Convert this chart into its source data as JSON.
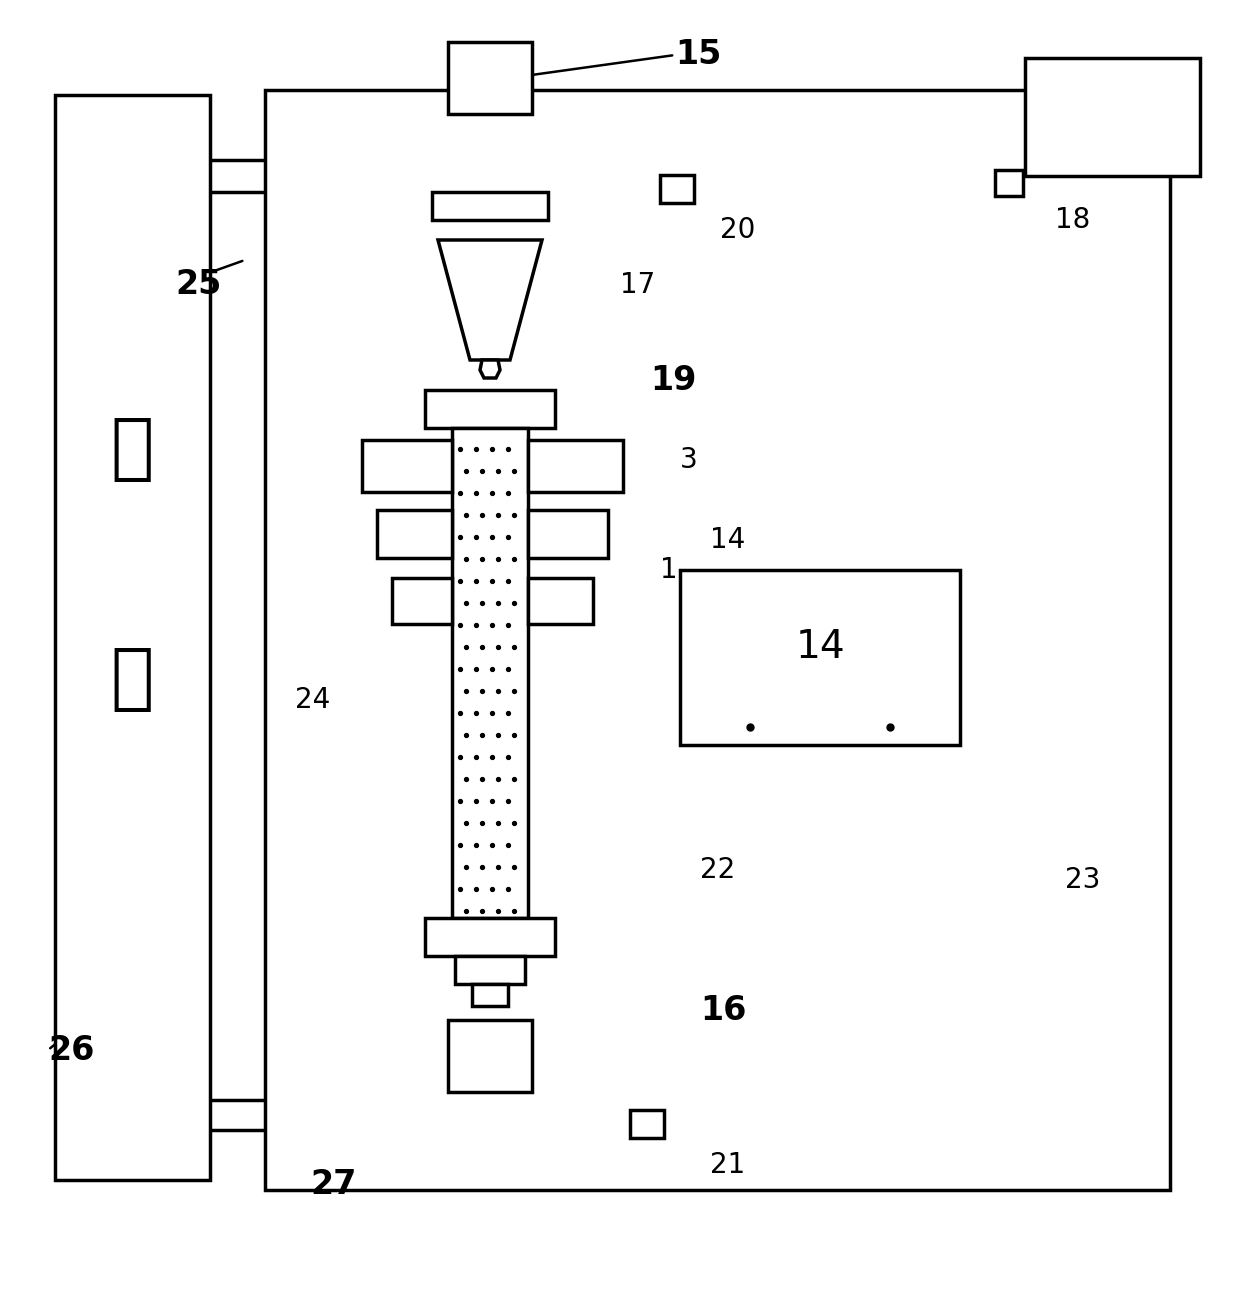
{
  "bg": "#ffffff",
  "lc": "#000000",
  "lw": 2.5,
  "lwt": 1.8,
  "fig_w": 12.4,
  "fig_h": 13.09,
  "dpi": 100
}
